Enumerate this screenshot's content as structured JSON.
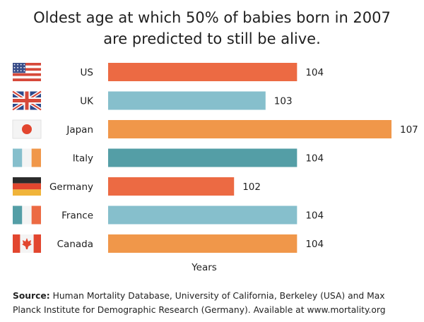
{
  "title_line1": "Oldest age at which 50% of babies born in 2007",
  "title_line2": "are predicted to still be alive.",
  "source_label": "Source:",
  "source_text": "Human Mortality Database, University of California, Berkeley (USA) and Max Planck Institute for Demographic Research (Germany). Available at www.mortality.org",
  "chart_data": {
    "type": "bar",
    "orientation": "horizontal",
    "title": "Oldest age at which 50% of babies born in 2007 are predicted to still be alive.",
    "xlabel": "Years",
    "ylabel": "",
    "categories": [
      "US",
      "UK",
      "Japan",
      "Italy",
      "Germany",
      "France",
      "Canada"
    ],
    "values": [
      104,
      103,
      107,
      104,
      102,
      104,
      104
    ],
    "bar_colors": [
      "#ec6a43",
      "#86bfcc",
      "#f0974a",
      "#549ea6",
      "#ec6a43",
      "#86bfcc",
      "#f0974a"
    ],
    "flags": [
      "us-flag-icon",
      "uk-flag-icon",
      "japan-flag-icon",
      "italy-flag-icon",
      "germany-flag-icon",
      "france-flag-icon",
      "canada-flag-icon"
    ],
    "xlim": [
      98,
      107
    ],
    "grid": false,
    "legend": "none"
  }
}
